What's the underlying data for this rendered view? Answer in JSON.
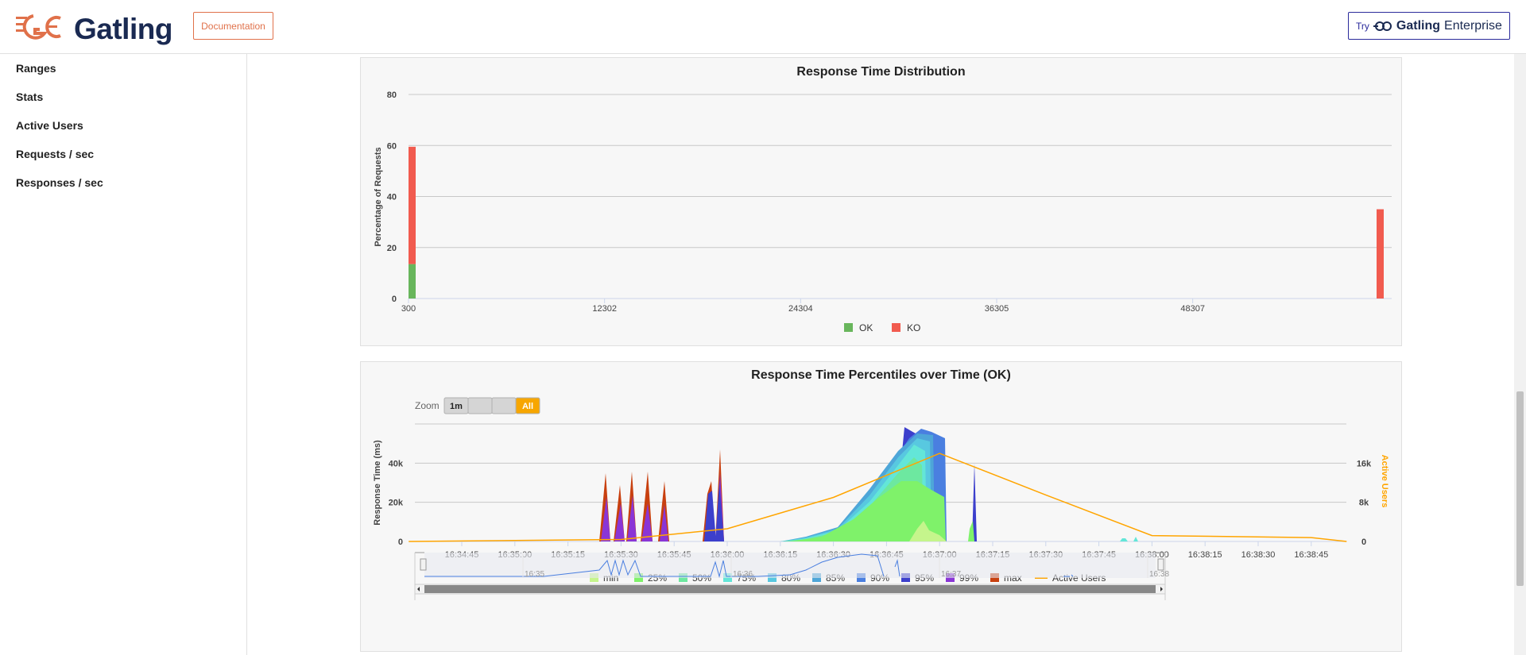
{
  "header": {
    "brand": "Gatling",
    "doc_button": "Documentation",
    "enterprise_try": "Try",
    "enterprise_brand": "Gatling",
    "enterprise_sub": "Enterprise"
  },
  "sidebar": {
    "items": [
      {
        "label": "Ranges"
      },
      {
        "label": "Stats"
      },
      {
        "label": "Active Users"
      },
      {
        "label": "Requests / sec"
      },
      {
        "label": "Responses / sec"
      }
    ]
  },
  "colors": {
    "ok": "#68b65c",
    "ko": "#f15b4f",
    "active_users": "#ffa500",
    "brand_orange": "#e0714a",
    "brand_navy": "#1a2a52"
  },
  "chart_data": [
    {
      "type": "bar",
      "title": "Response Time Distribution",
      "ylabel": "Percentage of Requests",
      "xlabel": "",
      "ylim": [
        0,
        80
      ],
      "yticks": [
        "0",
        "20",
        "40",
        "60",
        "80"
      ],
      "xticks": [
        "300",
        "12302",
        "24304",
        "36305",
        "48307"
      ],
      "xlim": [
        300,
        60000
      ],
      "legend": "bottom",
      "series": [
        {
          "name": "OK",
          "x": [
            300
          ],
          "values": [
            13.5
          ]
        },
        {
          "name": "KO",
          "x": [
            300,
            60000
          ],
          "values": [
            46,
            35
          ]
        }
      ]
    },
    {
      "type": "area",
      "title": "Response Time Percentiles over Time (OK)",
      "ylabel": "Response Time (ms)",
      "y2label": "Active Users",
      "yticks": [
        "0",
        "20k",
        "40k"
      ],
      "y2ticks": [
        "0",
        "8k",
        "16k"
      ],
      "xticks": [
        "16:34:45",
        "16:35:00",
        "16:35:15",
        "16:35:30",
        "16:35:45",
        "16:36:00",
        "16:36:15",
        "16:36:30",
        "16:36:45",
        "16:37:00",
        "16:37:15",
        "16:37:30",
        "16:37:45",
        "16:38:00",
        "16:38:15",
        "16:38:30",
        "16:38:45"
      ],
      "zoom": {
        "label": "Zoom",
        "buttons": [
          "1m",
          "",
          "",
          "All"
        ],
        "active": "All"
      },
      "navigator_labels": [
        "16:35",
        "16:36",
        "16:37",
        "16:38"
      ],
      "legend": "bottom",
      "legend_items": [
        {
          "name": "min",
          "color": "#c5f58c"
        },
        {
          "name": "25%",
          "color": "#7ff26a"
        },
        {
          "name": "50%",
          "color": "#6de8a0"
        },
        {
          "name": "75%",
          "color": "#63e6d8"
        },
        {
          "name": "80%",
          "color": "#58c8e0"
        },
        {
          "name": "85%",
          "color": "#4ea6d8"
        },
        {
          "name": "90%",
          "color": "#4a7fe0"
        },
        {
          "name": "95%",
          "color": "#3c3fcc"
        },
        {
          "name": "99%",
          "color": "#8a35d6"
        },
        {
          "name": "max",
          "color": "#c8400f"
        },
        {
          "name": "Active Users",
          "color": "#ffa500"
        }
      ],
      "series": [
        {
          "name": "Active Users",
          "x": [
            "16:34:30",
            "16:35:30",
            "16:36:00",
            "16:36:30",
            "16:37:00",
            "16:37:30",
            "16:38:00",
            "16:38:45",
            "16:38:55"
          ],
          "values": [
            0,
            400,
            2600,
            9000,
            18000,
            9500,
            1200,
            800,
            0
          ]
        }
      ]
    }
  ]
}
